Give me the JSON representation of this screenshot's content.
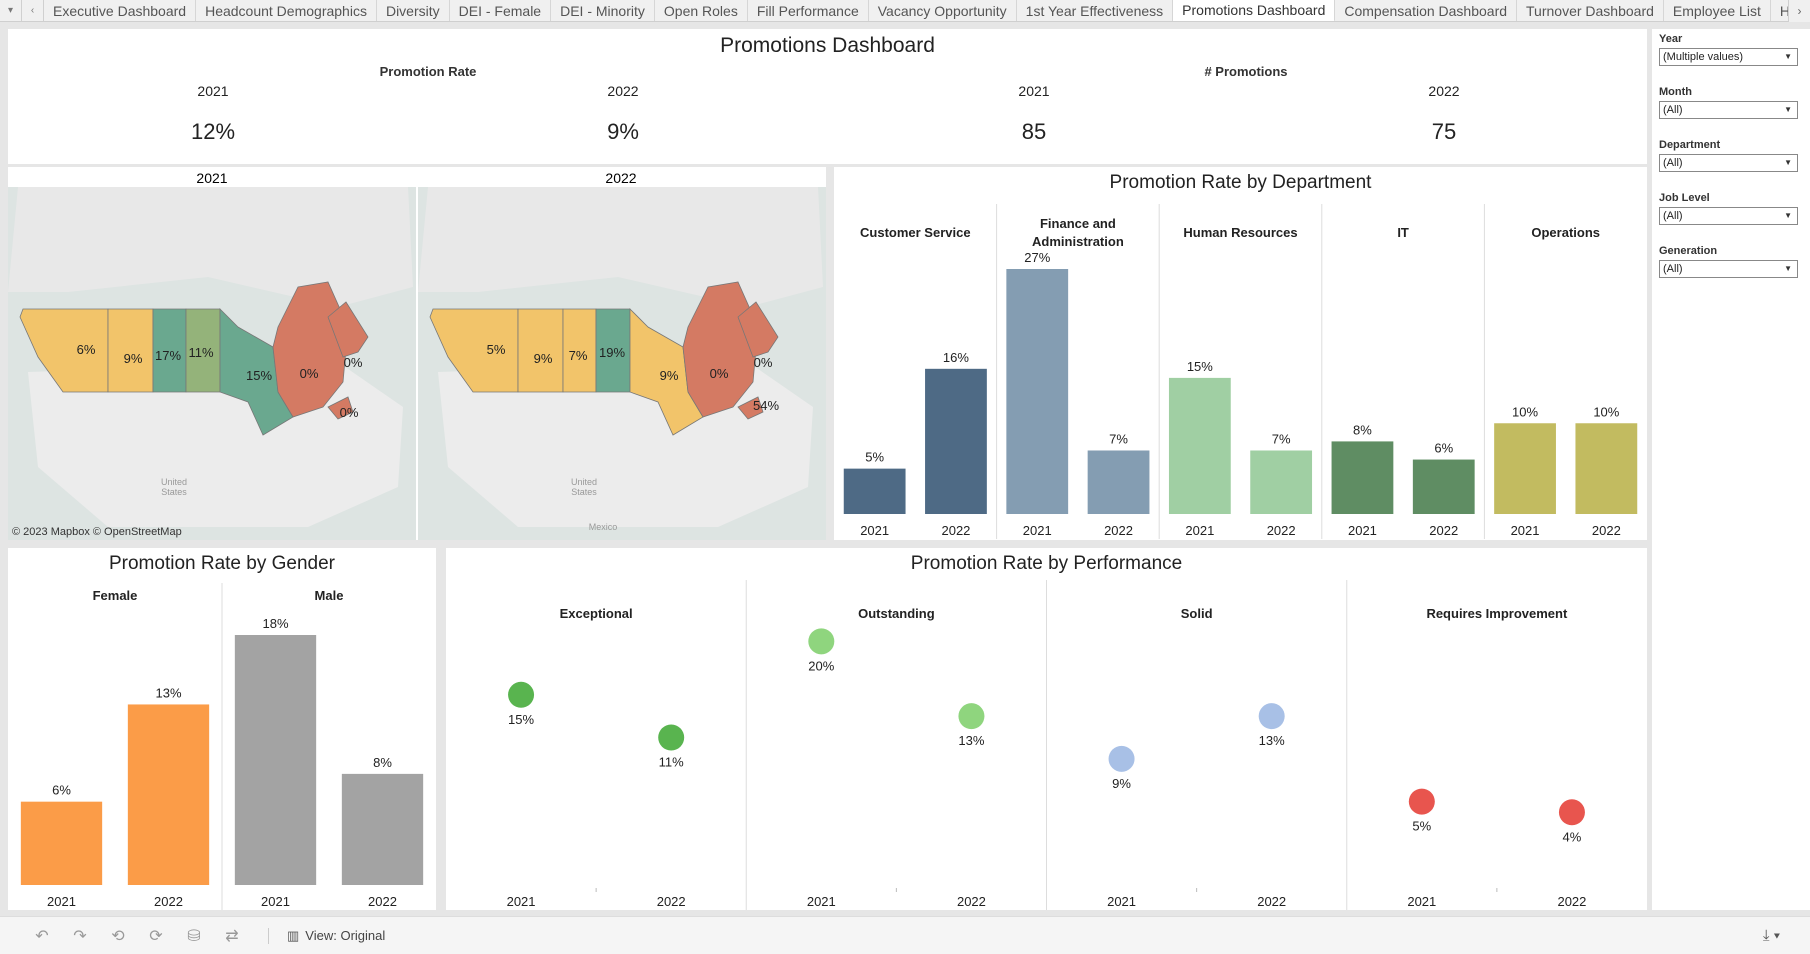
{
  "tabs": [
    "Executive Dashboard",
    "Headcount Demographics",
    "Diversity",
    "DEI - Female",
    "DEI - Minority",
    "Open Roles",
    "Fill Performance",
    "Vacancy Opportunity",
    "1st Year Effectiveness",
    "Promotions Dashboard",
    "Compensation Dashboard",
    "Turnover Dashboard",
    "Employee List",
    "Hires Li"
  ],
  "active_tab": "Promotions Dashboard",
  "header": {
    "title": "Promotions Dashboard",
    "promotion_rate_label": "Promotion Rate",
    "num_promotions_label": "# Promotions",
    "kpis": [
      {
        "year": "2021",
        "value": "12%"
      },
      {
        "year": "2022",
        "value": "9%"
      },
      {
        "year": "2021",
        "value": "85"
      },
      {
        "year": "2022",
        "value": "75"
      }
    ]
  },
  "map": {
    "years": [
      "2021",
      "2022"
    ],
    "attribution": "© 2023 Mapbox  © OpenStreetMap",
    "us_label": "United States",
    "mexico_label": "Mexico",
    "map2021_labels": [
      "6%",
      "9%",
      "17%",
      "11%",
      "15%",
      "0%",
      "0%",
      "0%"
    ],
    "map2022_labels": [
      "5%",
      "9%",
      "7%",
      "19%",
      "9%",
      "0%",
      "0%",
      "54%"
    ],
    "colors": {
      "yellow": "#f2c46a",
      "teal": "#6aa88f",
      "sage": "#94b37a",
      "red": "#d47a63"
    }
  },
  "department": {
    "title": "Promotion Rate by Department",
    "headers": [
      "Customer Service",
      "Finance and Administration",
      "Human Resources",
      "IT",
      "Operations"
    ]
  },
  "gender": {
    "title": "Promotion Rate by Gender",
    "headers": [
      "Female",
      "Male"
    ]
  },
  "performance": {
    "title": "Promotion Rate by Performance",
    "headers": [
      "Exceptional",
      "Outstanding",
      "Solid",
      "Requires Improvement"
    ]
  },
  "chart_data": [
    {
      "type": "bar",
      "title": "Promotion Rate by Department",
      "groups": [
        "Customer Service",
        "Finance and Administration",
        "Human Resources",
        "IT",
        "Operations"
      ],
      "categories": [
        "2021",
        "2022"
      ],
      "values": [
        [
          5,
          16
        ],
        [
          27,
          7
        ],
        [
          15,
          7
        ],
        [
          8,
          6
        ],
        [
          10,
          10
        ]
      ],
      "labels": [
        [
          "5%",
          "16%"
        ],
        [
          "27%",
          "7%"
        ],
        [
          "15%",
          "7%"
        ],
        [
          "8%",
          "6%"
        ],
        [
          "10%",
          "10%"
        ]
      ],
      "colors": [
        "#4e6a85",
        "#849db2",
        "#a0cfa3",
        "#5f8d63",
        "#c2bb60"
      ],
      "ylim": [
        0,
        27
      ]
    },
    {
      "type": "bar",
      "title": "Promotion Rate by Gender",
      "groups": [
        "Female",
        "Male"
      ],
      "categories": [
        "2021",
        "2022"
      ],
      "values": [
        [
          6,
          13
        ],
        [
          18,
          8
        ]
      ],
      "labels": [
        [
          "6%",
          "13%"
        ],
        [
          "18%",
          "8%"
        ]
      ],
      "colors": [
        "#fb9c48",
        "#a3a3a3"
      ],
      "ylim": [
        0,
        18
      ]
    },
    {
      "type": "scatter",
      "title": "Promotion Rate by Performance",
      "groups": [
        "Exceptional",
        "Outstanding",
        "Solid",
        "Requires Improvement"
      ],
      "categories": [
        "2021",
        "2022"
      ],
      "values": [
        [
          15,
          11
        ],
        [
          20,
          13
        ],
        [
          9,
          13
        ],
        [
          5,
          4
        ]
      ],
      "labels": [
        [
          "15%",
          "11%"
        ],
        [
          "20%",
          "13%"
        ],
        [
          "9%",
          "13%"
        ],
        [
          "5%",
          "4%"
        ]
      ],
      "colors": [
        [
          "#59b44f",
          "#59b44f"
        ],
        [
          "#8fd57e",
          "#8fd57e"
        ],
        [
          "#a8c0e6",
          "#a8c0e6"
        ],
        [
          "#e8554e",
          "#e8554e"
        ]
      ],
      "ylim": [
        0,
        22
      ]
    }
  ],
  "filters": [
    {
      "label": "Year",
      "value": "(Multiple values)"
    },
    {
      "label": "Month",
      "value": "(All)"
    },
    {
      "label": "Department",
      "value": "(All)"
    },
    {
      "label": "Job Level",
      "value": "(All)"
    },
    {
      "label": "Generation",
      "value": "(All)"
    }
  ],
  "statusbar": {
    "view_label": "View: Original"
  }
}
